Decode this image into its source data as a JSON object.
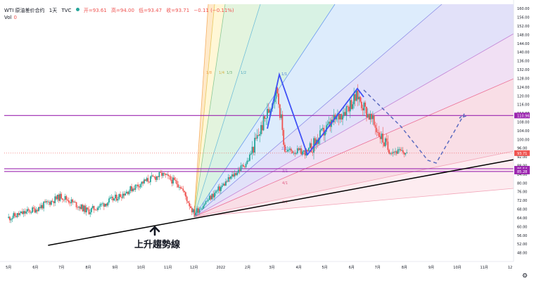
{
  "header": {
    "symbol": "WTI 原油差价合约",
    "interval": "1天",
    "source": "TVC",
    "ohlc_open": "开=93.61",
    "ohlc_high": "高=94.00",
    "ohlc_low": "低=93.47",
    "ohlc_close": "收=93.71",
    "ohlc_change": "−0.11 (−0.11%)",
    "vol_label": "Vol",
    "vol_value": "0"
  },
  "colors": {
    "up": "#26a69a",
    "down": "#ef5350",
    "support_line": "#9c27b0",
    "trendline": "#000000",
    "pattern": "#3f51f5",
    "projection": "#5c6bc0"
  },
  "annotation": {
    "arrow_icon": "up-arrow-icon",
    "label": "上升趨勢線"
  },
  "chart_data": {
    "type": "candlestick",
    "title": "",
    "y_axis_ticks": [
      48,
      52,
      56,
      60,
      64,
      68,
      72,
      76,
      80,
      84,
      88,
      92,
      96,
      100,
      104,
      108,
      112,
      116,
      120,
      124,
      128,
      132,
      136,
      140,
      144,
      148,
      152,
      156,
      160
    ],
    "y_axis_tick_labels": [
      "48.00",
      "52.00",
      "56.00",
      "60.00",
      "64.00",
      "68.00",
      "72.00",
      "76.00",
      "80.00",
      "84.00",
      "88.00",
      "92.00",
      "96.00",
      "100.00",
      "104.00",
      "108.00",
      "112.00",
      "116.00",
      "120.00",
      "124.00",
      "128.00",
      "132.00",
      "136.00",
      "140.00",
      "144.00",
      "148.00",
      "152.00",
      "156.00",
      "160.00"
    ],
    "ylim": [
      44,
      162
    ],
    "x_axis_labels": [
      "5月",
      "6月",
      "7月",
      "8月",
      "9月",
      "10月",
      "11月",
      "12月",
      "2022",
      "2月",
      "3月",
      "4月",
      "5月",
      "6月",
      "7月",
      "8月",
      "9月",
      "10月",
      "11月",
      "12"
    ],
    "price_labels": [
      {
        "value": 110.96,
        "text": "110.96",
        "color": "#9c27b0"
      },
      {
        "value": 93.71,
        "text": "93.71",
        "color": "#ef5350"
      },
      {
        "value": 86.54,
        "text": "86.54",
        "color": "#9c27b0"
      },
      {
        "value": 85.28,
        "text": "85.28",
        "color": "#9c27b0"
      }
    ],
    "horizontal_lines": [
      110.96,
      86.54,
      85.28
    ],
    "current_price": 93.71,
    "gann_fan": {
      "origin": {
        "x": "2021-12-01",
        "y": 64.5
      },
      "ratio_labels": [
        "1/8",
        "1/4",
        "1/3",
        "1/2",
        "1/1",
        "2/1",
        "3/1",
        "4/1",
        "8/1"
      ]
    },
    "uptrend_line": {
      "from": {
        "x": "2021-06-01",
        "y": 52
      },
      "to": {
        "x": "2022-12-01",
        "y": 92
      }
    },
    "candles_approx": [
      {
        "x": "2021-05-01",
        "y": 64
      },
      {
        "x": "2021-06-01",
        "y": 68
      },
      {
        "x": "2021-07-01",
        "y": 74
      },
      {
        "x": "2021-08-01",
        "y": 67
      },
      {
        "x": "2021-09-01",
        "y": 73
      },
      {
        "x": "2021-10-01",
        "y": 80
      },
      {
        "x": "2021-10-25",
        "y": 84
      },
      {
        "x": "2021-11-15",
        "y": 79
      },
      {
        "x": "2021-12-01",
        "y": 66
      },
      {
        "x": "2022-01-01",
        "y": 78
      },
      {
        "x": "2022-02-01",
        "y": 90
      },
      {
        "x": "2022-03-07",
        "y": 123
      },
      {
        "x": "2022-03-16",
        "y": 95
      },
      {
        "x": "2022-04-11",
        "y": 94
      },
      {
        "x": "2022-05-01",
        "y": 104
      },
      {
        "x": "2022-06-08",
        "y": 120
      },
      {
        "x": "2022-07-14",
        "y": 95
      },
      {
        "x": "2022-08-05",
        "y": 93.7
      }
    ]
  }
}
